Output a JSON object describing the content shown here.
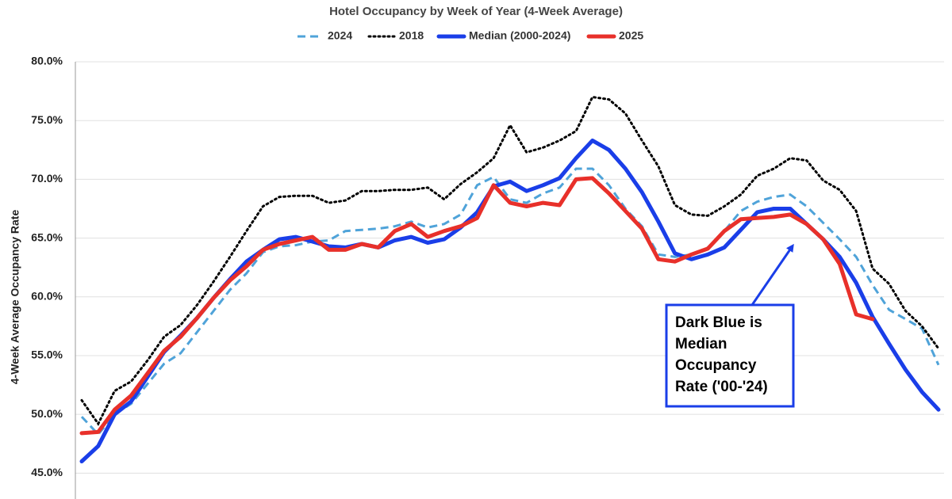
{
  "chart_data": {
    "type": "line",
    "title": "Hotel Occupancy by Week of Year (4-Week Average)",
    "y_label": "4-Week Average Occupancy Rate",
    "annotation": [
      "Dark Blue is",
      "Median",
      "Occupancy",
      "Rate ('00-'24)"
    ],
    "ylim": [
      43,
      80
    ],
    "yticks": [
      {
        "value": 45,
        "label": "45.0%"
      },
      {
        "value": 50,
        "label": "50.0%"
      },
      {
        "value": 55,
        "label": "55.0%"
      },
      {
        "value": 60,
        "label": "60.0%"
      },
      {
        "value": 65,
        "label": "65.0%"
      },
      {
        "value": 70,
        "label": "70.0%"
      },
      {
        "value": 75,
        "label": "75.0%"
      },
      {
        "value": 80,
        "label": "80.0%"
      }
    ],
    "grid": true,
    "series": [
      {
        "name": "2024",
        "color": "#4fa3d9",
        "style": "dashed",
        "values": [
          49.8,
          48.3,
          50.0,
          50.9,
          52.6,
          54.3,
          55.2,
          57.0,
          58.8,
          60.6,
          62.0,
          63.8,
          64.3,
          64.4,
          64.7,
          64.8,
          65.6,
          65.7,
          65.8,
          66.0,
          66.4,
          65.9,
          66.2,
          67.0,
          69.5,
          70.2,
          68.3,
          68.0,
          68.8,
          69.3,
          70.9,
          70.9,
          69.5,
          67.5,
          66.0,
          63.6,
          63.4,
          63.6,
          64.2,
          65.6,
          67.3,
          68.1,
          68.5,
          68.7,
          67.7,
          66.3,
          64.9,
          63.4,
          61.0,
          58.9,
          58.1,
          57.3,
          54.2
        ]
      },
      {
        "name": "2018",
        "color": "#000000",
        "style": "dotted",
        "values": [
          51.2,
          49.2,
          52.0,
          52.8,
          54.6,
          56.6,
          57.6,
          59.3,
          61.3,
          63.4,
          65.6,
          67.7,
          68.5,
          68.6,
          68.6,
          68.0,
          68.2,
          69.0,
          69.0,
          69.1,
          69.1,
          69.3,
          68.3,
          69.6,
          70.6,
          71.8,
          74.6,
          72.3,
          72.7,
          73.3,
          74.1,
          77.0,
          76.8,
          75.6,
          73.3,
          71.1,
          67.8,
          67.0,
          66.9,
          67.7,
          68.7,
          70.3,
          70.9,
          71.8,
          71.6,
          69.9,
          69.1,
          67.3,
          62.4,
          61.1,
          58.8,
          57.5,
          55.6
        ]
      },
      {
        "name": "Median (2000-2024)",
        "color": "#1a3ee8",
        "style": "solid",
        "values": [
          46.0,
          47.3,
          50.0,
          51.1,
          53.2,
          55.3,
          56.7,
          58.2,
          59.9,
          61.5,
          63.0,
          64.0,
          64.9,
          65.1,
          64.7,
          64.3,
          64.2,
          64.5,
          64.2,
          64.8,
          65.1,
          64.6,
          64.9,
          65.9,
          67.2,
          69.4,
          69.8,
          69.0,
          69.5,
          70.1,
          71.8,
          73.3,
          72.5,
          70.9,
          68.9,
          66.4,
          63.7,
          63.2,
          63.6,
          64.2,
          65.7,
          67.2,
          67.5,
          67.5,
          66.2,
          64.9,
          63.4,
          61.2,
          58.3,
          56.0,
          53.8,
          51.9,
          50.4
        ]
      },
      {
        "name": "2025",
        "color": "#e8302a",
        "style": "solid",
        "values": [
          48.4,
          48.5,
          50.4,
          51.6,
          53.5,
          55.4,
          56.6,
          58.2,
          59.9,
          61.4,
          62.6,
          64.0,
          64.5,
          64.8,
          65.1,
          64.0,
          64.0,
          64.5,
          64.2,
          65.6,
          66.2,
          65.1,
          65.6,
          66.0,
          66.7,
          69.5,
          68.0,
          67.7,
          68.0,
          67.8,
          70.0,
          70.1,
          68.8,
          67.3,
          65.8,
          63.2,
          63.0,
          63.6,
          64.1,
          65.6,
          66.6,
          66.7,
          66.8,
          67.0,
          66.2,
          64.9,
          62.8,
          58.5,
          58.1
        ]
      }
    ]
  }
}
